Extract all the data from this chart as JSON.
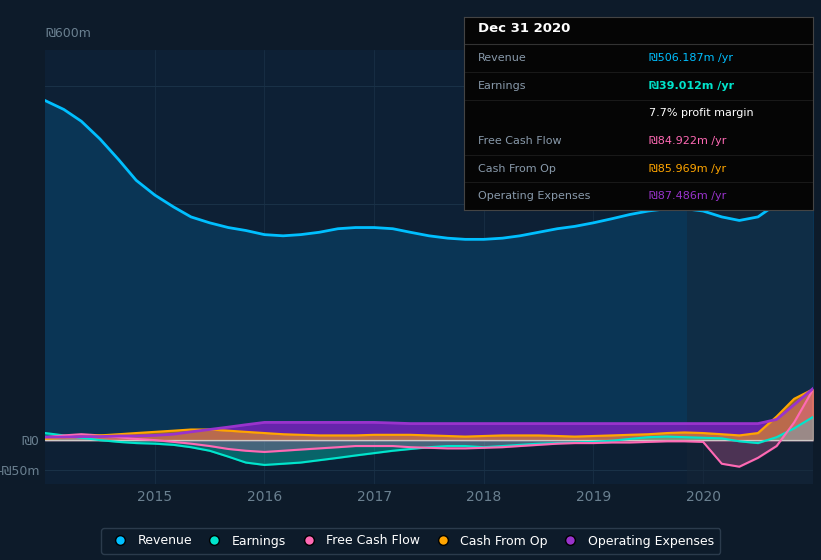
{
  "bg_color": "#0d1b2a",
  "plot_bg_color": "#0d2035",
  "grid_color": "#1a3248",
  "xlabel_color": "#6a8090",
  "ylim": [
    -75,
    660
  ],
  "xtick_years": [
    2015,
    2016,
    2017,
    2018,
    2019,
    2020
  ],
  "years": [
    2014.0,
    2014.17,
    2014.33,
    2014.5,
    2014.67,
    2014.83,
    2015.0,
    2015.17,
    2015.33,
    2015.5,
    2015.67,
    2015.83,
    2016.0,
    2016.17,
    2016.33,
    2016.5,
    2016.67,
    2016.83,
    2017.0,
    2017.17,
    2017.33,
    2017.5,
    2017.67,
    2017.83,
    2018.0,
    2018.17,
    2018.33,
    2018.5,
    2018.67,
    2018.83,
    2019.0,
    2019.17,
    2019.33,
    2019.5,
    2019.67,
    2019.83,
    2020.0,
    2020.17,
    2020.33,
    2020.5,
    2020.67,
    2020.83,
    2021.0
  ],
  "revenue": [
    575,
    560,
    540,
    510,
    475,
    440,
    415,
    395,
    378,
    368,
    360,
    355,
    348,
    346,
    348,
    352,
    358,
    360,
    360,
    358,
    352,
    346,
    342,
    340,
    340,
    342,
    346,
    352,
    358,
    362,
    368,
    375,
    382,
    388,
    392,
    392,
    388,
    378,
    372,
    378,
    400,
    450,
    506
  ],
  "earnings": [
    12,
    8,
    4,
    0,
    -3,
    -5,
    -6,
    -8,
    -12,
    -18,
    -28,
    -38,
    -42,
    -40,
    -38,
    -34,
    -30,
    -26,
    -22,
    -18,
    -15,
    -12,
    -10,
    -10,
    -12,
    -10,
    -8,
    -6,
    -5,
    -4,
    -3,
    -1,
    2,
    5,
    6,
    5,
    4,
    3,
    -2,
    -5,
    5,
    20,
    39
  ],
  "free_cash_flow": [
    5,
    8,
    10,
    8,
    5,
    2,
    0,
    -3,
    -6,
    -10,
    -15,
    -18,
    -20,
    -18,
    -16,
    -14,
    -12,
    -10,
    -10,
    -10,
    -12,
    -13,
    -14,
    -14,
    -13,
    -12,
    -10,
    -8,
    -6,
    -5,
    -5,
    -4,
    -4,
    -3,
    -2,
    -2,
    -3,
    -40,
    -45,
    -30,
    -10,
    30,
    85
  ],
  "cash_from_op": [
    2,
    4,
    6,
    8,
    10,
    12,
    14,
    16,
    18,
    18,
    16,
    14,
    12,
    10,
    9,
    8,
    8,
    8,
    9,
    9,
    9,
    8,
    7,
    6,
    7,
    8,
    8,
    8,
    7,
    6,
    7,
    8,
    9,
    10,
    12,
    13,
    12,
    10,
    8,
    12,
    40,
    70,
    86
  ],
  "operating_expenses": [
    5,
    5,
    6,
    6,
    7,
    7,
    8,
    10,
    14,
    18,
    22,
    26,
    30,
    30,
    30,
    30,
    30,
    30,
    30,
    29,
    28,
    28,
    28,
    28,
    28,
    28,
    28,
    28,
    28,
    28,
    28,
    28,
    28,
    28,
    28,
    28,
    28,
    28,
    28,
    28,
    35,
    60,
    87
  ],
  "revenue_color": "#00bfff",
  "revenue_fill": "#0a3555",
  "earnings_color": "#00e5cc",
  "earnings_fill": "#00e5cc",
  "fcf_color": "#ff69b4",
  "fcf_fill": "#ff69b4",
  "cfo_color": "#ffa500",
  "cfo_fill": "#ffa500",
  "opex_color": "#9933cc",
  "opex_fill": "#7722bb",
  "tooltip_bg": "#050505",
  "tooltip_border": "#444444",
  "tooltip_title": "Dec 31 2020",
  "legend_items": [
    {
      "label": "Revenue",
      "color": "#00bfff"
    },
    {
      "label": "Earnings",
      "color": "#00e5cc"
    },
    {
      "label": "Free Cash Flow",
      "color": "#ff69b4"
    },
    {
      "label": "Cash From Op",
      "color": "#ffa500"
    },
    {
      "label": "Operating Expenses",
      "color": "#9933cc"
    }
  ]
}
